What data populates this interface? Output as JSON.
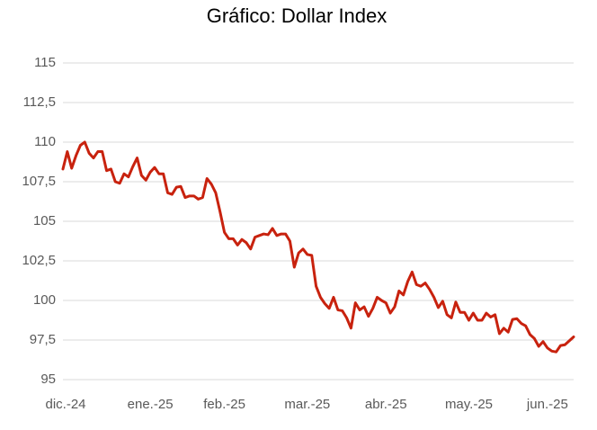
{
  "chart_data": {
    "type": "line",
    "title": "Gráfico: Dollar Index",
    "categories": [
      "dic.-24",
      null,
      null,
      null,
      null,
      null,
      null,
      null,
      null,
      null,
      null,
      null,
      null,
      null,
      null,
      null,
      null,
      null,
      null,
      null,
      "ene.-25",
      null,
      null,
      null,
      null,
      null,
      null,
      null,
      null,
      null,
      null,
      null,
      null,
      null,
      null,
      null,
      null,
      "feb.-25",
      null,
      null,
      null,
      null,
      null,
      null,
      null,
      null,
      null,
      null,
      null,
      null,
      null,
      null,
      null,
      null,
      null,
      null,
      "mar.-25",
      null,
      null,
      null,
      null,
      null,
      null,
      null,
      null,
      null,
      null,
      null,
      null,
      null,
      null,
      null,
      null,
      null,
      "abr.-25",
      null,
      null,
      null,
      null,
      null,
      null,
      null,
      null,
      null,
      null,
      null,
      null,
      null,
      null,
      null,
      null,
      null,
      null,
      "may.-25",
      null,
      null,
      null,
      null,
      null,
      null,
      null,
      null,
      null,
      null,
      null,
      null,
      null,
      null,
      null,
      null,
      null,
      "jun.-25",
      null,
      null,
      null,
      null,
      null,
      null
    ],
    "series": [
      {
        "name": "Dollar Index",
        "color": "#c8220e",
        "values": [
          108.3,
          109.4,
          108.35,
          109.15,
          109.8,
          110.0,
          109.3,
          109.0,
          109.4,
          109.4,
          108.2,
          108.3,
          107.5,
          107.4,
          108.0,
          107.8,
          108.45,
          109.0,
          107.9,
          107.6,
          108.1,
          108.4,
          108.0,
          108.0,
          106.8,
          106.7,
          107.15,
          107.2,
          106.5,
          106.6,
          106.6,
          106.4,
          106.5,
          107.7,
          107.35,
          106.8,
          105.6,
          104.3,
          103.9,
          103.9,
          103.5,
          103.85,
          103.65,
          103.25,
          104.0,
          104.1,
          104.2,
          104.15,
          104.55,
          104.1,
          104.2,
          104.2,
          103.75,
          102.1,
          103.0,
          103.25,
          102.9,
          102.85,
          100.9,
          100.2,
          99.8,
          99.5,
          100.2,
          99.4,
          99.35,
          98.9,
          98.25,
          99.85,
          99.4,
          99.6,
          99.0,
          99.5,
          100.2,
          100.0,
          99.85,
          99.2,
          99.6,
          100.6,
          100.35,
          101.2,
          101.8,
          101.0,
          100.9,
          101.1,
          100.7,
          100.2,
          99.55,
          99.95,
          99.1,
          98.9,
          99.9,
          99.25,
          99.25,
          98.75,
          99.2,
          98.75,
          98.75,
          99.2,
          98.95,
          99.1,
          97.9,
          98.25,
          98.0,
          98.8,
          98.85,
          98.55,
          98.4,
          97.85,
          97.6,
          97.1,
          97.4,
          97.0,
          96.8,
          96.75,
          97.15,
          97.2,
          97.45,
          97.7
        ]
      }
    ],
    "ylim": [
      95,
      115
    ],
    "yticks": [
      95,
      {
        "value": 97.5,
        "label": "97,5"
      },
      100,
      {
        "value": 102.5,
        "label": "102,5"
      },
      105,
      {
        "value": 107.5,
        "label": "107,5"
      },
      110,
      {
        "value": 112.5,
        "label": "112,5"
      },
      115
    ],
    "grid": true
  }
}
